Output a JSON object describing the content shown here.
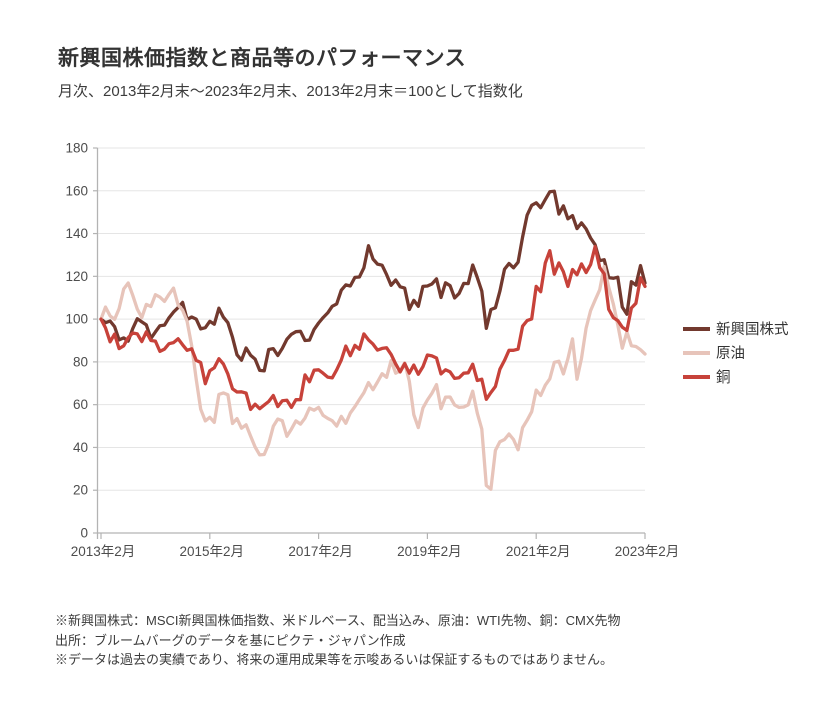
{
  "header": {
    "title": "新興国株価指数と商品等のパフォーマンス",
    "subtitle": "月次、2013年2月末～2023年2月末、2013年2月末＝100として指数化"
  },
  "chart_data": {
    "type": "line",
    "title": "新興国株価指数と商品等のパフォーマンス",
    "subtitle": "月次、2013年2月末～2023年2月末、2013年2月末＝100として指数化",
    "x_unit": "month",
    "x_range": [
      "2013年2月末",
      "2023年2月末"
    ],
    "x_tick_labels": [
      "2013年2月",
      "2015年2月",
      "2017年2月",
      "2019年2月",
      "2021年2月",
      "2023年2月"
    ],
    "x_tick_month_indices": [
      0,
      24,
      48,
      72,
      96,
      120
    ],
    "y_ticks": [
      0,
      20,
      40,
      60,
      80,
      100,
      120,
      140,
      160,
      180
    ],
    "ylim": [
      0,
      180
    ],
    "grid": "horizontal",
    "legend_position": "right",
    "colors": {
      "axis": "#b3b3b3",
      "gridline": "#e5e5e5",
      "tick_label": "#4d4d4d"
    },
    "series": [
      {
        "name": "新興国株式",
        "key": "emerging-equity",
        "color": "#72392e",
        "values": [
          100,
          98.3,
          99.1,
          96.5,
          90.3,
          91.2,
          89.7,
          95.5,
          100.2,
          98.7,
          97.3,
          91.0,
          94.0,
          96.9,
          97.2,
          100.6,
          103.3,
          105.4,
          107.8,
          99.8,
          101.0,
          100.0,
          95.4,
          96.0,
          99.0,
          97.6,
          105.1,
          100.9,
          98.3,
          91.5,
          83.3,
          80.8,
          86.5,
          83.1,
          81.3,
          76.0,
          75.8,
          85.8,
          86.2,
          83.0,
          86.3,
          90.6,
          92.9,
          94.1,
          94.3,
          90.0,
          90.2,
          95.2,
          98.2,
          100.7,
          102.9,
          106.0,
          107.1,
          113.5,
          116.0,
          115.5,
          119.5,
          119.7,
          124.0,
          134.3,
          128.1,
          125.7,
          125.2,
          120.8,
          115.8,
          118.3,
          115.1,
          114.5,
          104.5,
          108.8,
          106.0,
          115.3,
          115.5,
          116.4,
          118.8,
          110.1,
          117.0,
          115.6,
          109.9,
          112.0,
          116.7,
          116.6,
          125.3,
          119.4,
          113.1,
          95.7,
          104.5,
          105.3,
          113.1,
          123.3,
          126.0,
          124.0,
          126.6,
          138.4,
          148.6,
          153.2,
          154.4,
          152.1,
          155.9,
          159.5,
          159.8,
          149.1,
          153.0,
          146.9,
          148.4,
          142.3,
          145.0,
          142.2,
          137.9,
          134.8,
          127.3,
          127.8,
          119.4,
          119.1,
          119.6,
          105.6,
          102.3,
          117.5,
          115.9,
          125.0,
          116.9
        ]
      },
      {
        "name": "原油",
        "key": "crude-oil",
        "color": "#e7c4ba",
        "values": [
          100,
          105.6,
          101.5,
          99.9,
          104.9,
          114.1,
          116.9,
          111.2,
          104.7,
          100.7,
          106.9,
          105.9,
          111.4,
          110.3,
          108.3,
          111.6,
          114.5,
          106.6,
          104.2,
          99.0,
          87.5,
          71.9,
          57.9,
          52.4,
          54.1,
          51.7,
          64.8,
          65.5,
          64.6,
          51.2,
          53.5,
          49.0,
          50.6,
          45.3,
          40.2,
          36.5,
          36.7,
          41.7,
          49.9,
          53.3,
          52.5,
          45.2,
          48.6,
          52.4,
          50.9,
          53.7,
          58.4,
          57.4,
          58.7,
          55.0,
          53.6,
          52.5,
          50.0,
          54.5,
          51.3,
          56.1,
          59.1,
          62.4,
          65.6,
          70.3,
          67.0,
          70.6,
          74.5,
          72.8,
          80.6,
          74.7,
          75.8,
          79.6,
          71.0,
          55.3,
          49.3,
          58.4,
          62.2,
          65.3,
          69.4,
          58.1,
          63.5,
          63.6,
          59.9,
          58.7,
          58.9,
          59.9,
          66.3,
          56.0,
          48.6,
          22.2,
          20.5,
          38.6,
          42.7,
          43.7,
          46.3,
          43.7,
          38.9,
          49.3,
          52.7,
          56.7,
          66.8,
          64.3,
          69.1,
          72.1,
          79.8,
          80.3,
          74.4,
          81.5,
          90.8,
          71.9,
          81.7,
          95.8,
          104.0,
          108.9,
          113.7,
          124.6,
          114.9,
          107.1,
          97.3,
          86.4,
          94.0,
          87.5,
          87.2,
          85.7,
          83.7
        ]
      },
      {
        "name": "銅",
        "key": "copper",
        "color": "#c7423a",
        "values": [
          100,
          95.9,
          89.4,
          93.0,
          86.2,
          87.5,
          91.3,
          93.5,
          93.1,
          89.5,
          94.0,
          90.0,
          89.7,
          84.9,
          86.0,
          88.5,
          89.0,
          90.8,
          88.0,
          85.4,
          86.1,
          80.7,
          79.7,
          69.8,
          75.9,
          77.3,
          81.5,
          79.0,
          74.3,
          67.4,
          65.9,
          66.0,
          65.4,
          57.8,
          60.2,
          58.1,
          59.8,
          61.5,
          64.3,
          59.1,
          61.8,
          62.1,
          58.7,
          62.3,
          62.3,
          73.9,
          70.7,
          76.1,
          76.3,
          74.7,
          72.9,
          72.5,
          76.3,
          80.9,
          87.4,
          82.9,
          87.7,
          85.9,
          93.1,
          90.3,
          88.3,
          85.5,
          86.3,
          86.6,
          83.5,
          79.0,
          75.3,
          79.2,
          74.7,
          78.5,
          74.2,
          77.7,
          83.2,
          82.8,
          81.8,
          74.4,
          76.3,
          75.3,
          72.3,
          72.6,
          74.7,
          74.9,
          78.9,
          71.3,
          71.9,
          62.5,
          65.7,
          68.5,
          76.6,
          80.7,
          85.4,
          85.4,
          86.0,
          96.7,
          99.3,
          100.1,
          115.3,
          112.8,
          126.3,
          132.0,
          121.0,
          126.3,
          122.1,
          115.3,
          123.2,
          120.7,
          125.8,
          121.8,
          125.5,
          133.9,
          124.1,
          121.2,
          104.6,
          100.7,
          99.3,
          96.2,
          94.7,
          105.2,
          107.4,
          119.3,
          115.3
        ]
      }
    ]
  },
  "footnotes": [
    "※新興国株式：MSCI新興国株価指数、米ドルベース、配当込み、原油：WTI先物、銅：CMX先物",
    "出所：ブルームバーグのデータを基にピクテ・ジャパン作成",
    "※データは過去の実績であり、将来の運用成果等を示唆あるいは保証するものではありません。"
  ]
}
